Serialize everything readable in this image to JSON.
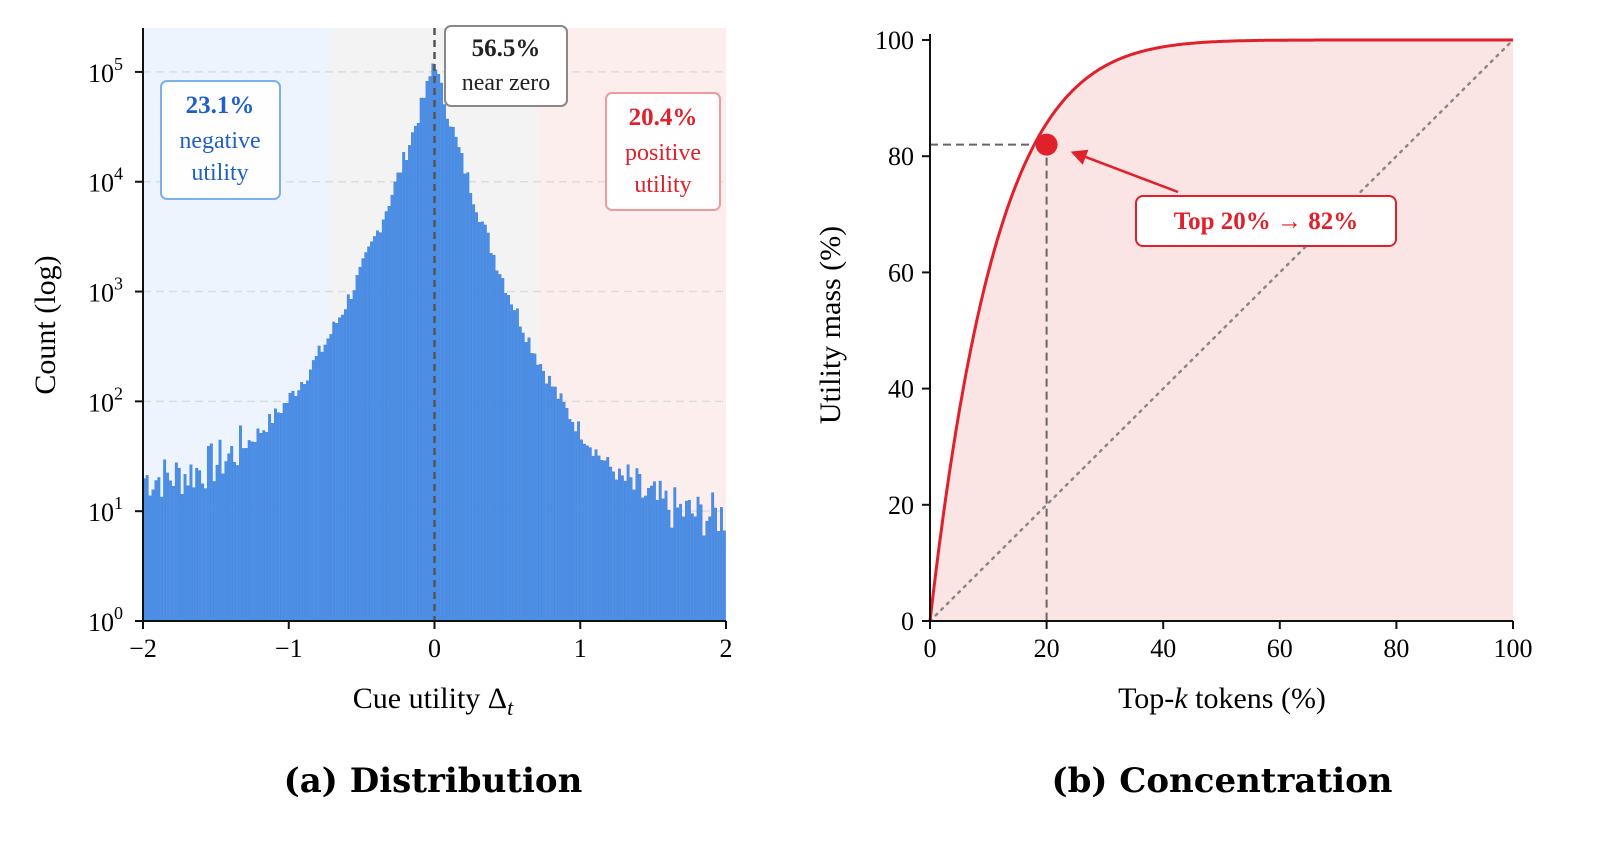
{
  "colors": {
    "bar": "#4a8fe7",
    "bar_edge": "#2f6fd0",
    "negative": "#1f5fcc",
    "negative_bg": "#edf4fd",
    "neutral_bg": "#f3f3f3",
    "positive": "#e0202a",
    "positive_bg": "#fdeeee",
    "curve": "#e0202a",
    "fill": "#fbe4e4",
    "reference": "#888888"
  },
  "captions": {
    "a": "(a) Distribution",
    "b": "(b) Concentration"
  },
  "chart_data": [
    {
      "type": "bar",
      "subtype": "histogram",
      "xlabel_text": "Cue utility Δ",
      "xlabel_sub": "t",
      "ylabel": "Count (log)",
      "xlim": [
        -2,
        2
      ],
      "ylim_log10": [
        0,
        5.4
      ],
      "y_scale": "log",
      "xticks": [
        -2,
        -1,
        0,
        1,
        2
      ],
      "xtick_labels": [
        "−2",
        "−1",
        "0",
        "1",
        "2"
      ],
      "yticks": [
        0,
        1,
        2,
        3,
        4,
        5
      ],
      "grid": "horizontal dashed",
      "regions": [
        {
          "name": "negative",
          "from": -2,
          "to": -0.72
        },
        {
          "name": "near zero",
          "from": -0.72,
          "to": 0.72
        },
        {
          "name": "positive",
          "from": 0.72,
          "to": 2
        }
      ],
      "annotations": {
        "negative": {
          "pct": "23.1%",
          "line1": "negative",
          "line2": "utility"
        },
        "near_zero": {
          "pct": "56.5%",
          "line1": "near zero"
        },
        "positive": {
          "pct": "20.4%",
          "line1": "positive",
          "line2": "utility"
        }
      },
      "center_line_x": 0,
      "bins_shape": {
        "peak_count": 120000,
        "left_edge_count": 20,
        "right_edge_count": 9,
        "note": "approximately 200 bins from -2 to 2, sharp peak at 0, roughly log-linear tails"
      }
    },
    {
      "type": "line",
      "xlabel_pre": "Top-",
      "xlabel_var": "k",
      "xlabel_post": " tokens (%)",
      "ylabel": "Utility mass (%)",
      "xlim": [
        0,
        100
      ],
      "ylim": [
        0,
        100
      ],
      "xticks": [
        0,
        20,
        40,
        60,
        80,
        100
      ],
      "yticks": [
        0,
        20,
        40,
        60,
        80,
        100
      ],
      "series": [
        {
          "x": [
            0,
            1,
            2,
            5,
            10,
            15,
            20,
            25,
            30,
            40,
            50,
            60,
            70,
            80,
            90,
            100
          ],
          "y": [
            0,
            16,
            25,
            43,
            63,
            74,
            82,
            87,
            91,
            96,
            98.5,
            99.5,
            99.9,
            100,
            100,
            100
          ]
        }
      ],
      "reference_line": {
        "x": [
          0,
          100
        ],
        "y": [
          0,
          100
        ],
        "style": "dotted"
      },
      "highlight_point": {
        "x": 20,
        "y": 82
      },
      "annotation": {
        "label": "Top 20%  →  82%"
      }
    }
  ]
}
